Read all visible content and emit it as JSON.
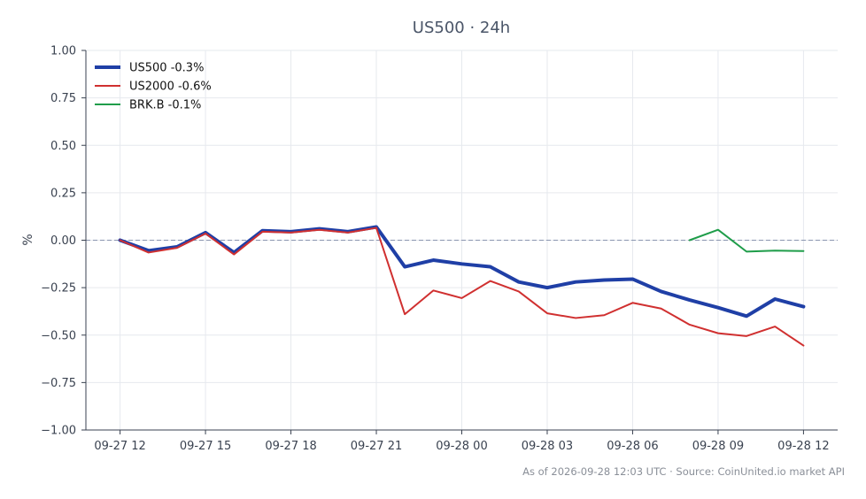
{
  "chart_data": {
    "type": "line",
    "title": "US500 · 24h",
    "xlabel": "",
    "ylabel": "%",
    "ylim": [
      -1.0,
      1.0
    ],
    "y_ticks": [
      1.0,
      0.75,
      0.5,
      0.25,
      0.0,
      -0.25,
      -0.5,
      -0.75,
      -1.0
    ],
    "y_tick_labels": [
      "1.00",
      "0.75",
      "0.50",
      "0.25",
      "0.00",
      "−0.25",
      "−0.50",
      "−0.75",
      "−1.00"
    ],
    "x_tick_labels": [
      "09-27 12",
      "09-27 15",
      "09-27 18",
      "09-27 21",
      "09-28 00",
      "09-28 03",
      "09-28 06",
      "09-28 09",
      "09-28 12"
    ],
    "x_tick_hours": [
      0,
      3,
      6,
      9,
      12,
      15,
      18,
      21,
      24
    ],
    "xlim_hours": [
      -1.2,
      25.2
    ],
    "grid": true,
    "zero_line": true,
    "legend_position": "top-left",
    "series": [
      {
        "name": "US500 -0.3%",
        "color": "#1f3fa6",
        "width": 4,
        "x": [
          0,
          1,
          2,
          3,
          4,
          5,
          6,
          7,
          8,
          9,
          10,
          11,
          12,
          13,
          14,
          15,
          16,
          17,
          18,
          19,
          20,
          21,
          22,
          23,
          24
        ],
        "values": [
          0.0,
          -0.055,
          -0.035,
          0.04,
          -0.065,
          0.05,
          0.045,
          0.06,
          0.045,
          0.07,
          -0.14,
          -0.105,
          -0.125,
          -0.14,
          -0.22,
          -0.25,
          -0.22,
          -0.21,
          -0.205,
          -0.27,
          -0.315,
          -0.355,
          -0.4,
          -0.31,
          -0.35
        ]
      },
      {
        "name": "US2000 -0.6%",
        "color": "#d03030",
        "width": 2,
        "x": [
          0,
          1,
          2,
          3,
          4,
          5,
          6,
          7,
          8,
          9,
          10,
          11,
          12,
          13,
          14,
          15,
          16,
          17,
          18,
          19,
          20,
          21,
          22,
          23,
          24
        ],
        "values": [
          0.0,
          -0.065,
          -0.04,
          0.035,
          -0.075,
          0.045,
          0.04,
          0.055,
          0.04,
          0.065,
          -0.39,
          -0.265,
          -0.305,
          -0.215,
          -0.27,
          -0.385,
          -0.41,
          -0.395,
          -0.33,
          -0.36,
          -0.445,
          -0.49,
          -0.505,
          -0.455,
          -0.555
        ]
      },
      {
        "name": "BRK.B -0.1%",
        "color": "#1f9d4a",
        "width": 2,
        "x": [
          20,
          21,
          22,
          23,
          24
        ],
        "values": [
          0.0,
          0.055,
          -0.06,
          -0.055,
          -0.057
        ]
      }
    ]
  },
  "footer": "As of 2026-09-28 12:03 UTC · Source: CoinUnited.io market API"
}
